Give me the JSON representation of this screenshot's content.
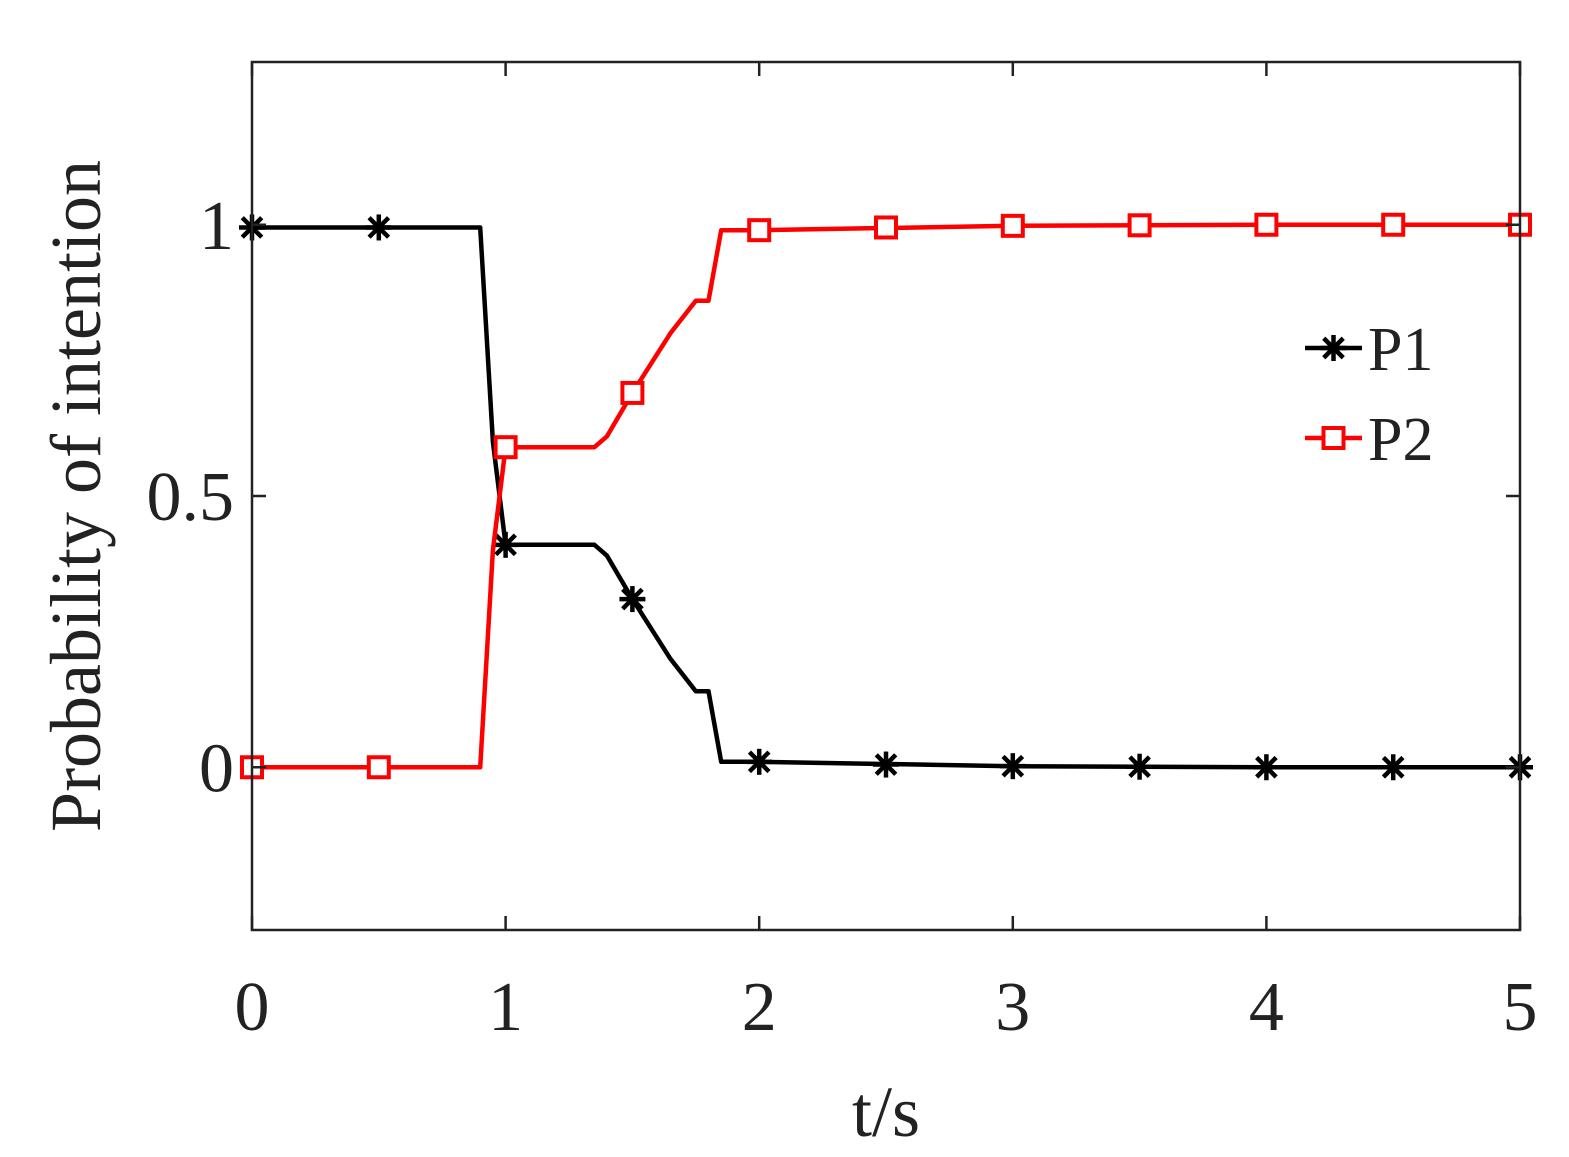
{
  "chart_data": {
    "type": "line",
    "title": "",
    "xlabel": "t/s",
    "ylabel": "Probability of intention",
    "xlim": [
      0,
      5
    ],
    "ylim": [
      -0.3,
      1.3
    ],
    "xticks": [
      0,
      1,
      2,
      3,
      4,
      5
    ],
    "xtick_labels": [
      "0",
      "1",
      "2",
      "3",
      "4",
      "5"
    ],
    "yticks": [
      0,
      0.5,
      1
    ],
    "ytick_labels": [
      "0",
      "0.5",
      "1"
    ],
    "grid": false,
    "legend_position": "right",
    "series": [
      {
        "name": "P1",
        "color": "#000000",
        "marker": "asterisk",
        "line": [
          [
            0,
            0.995
          ],
          [
            0.9,
            0.995
          ],
          [
            0.95,
            0.6
          ],
          [
            1.0,
            0.41
          ],
          [
            1.35,
            0.41
          ],
          [
            1.4,
            0.39
          ],
          [
            1.5,
            0.31
          ],
          [
            1.65,
            0.2
          ],
          [
            1.75,
            0.14
          ],
          [
            1.8,
            0.14
          ],
          [
            1.85,
            0.01
          ],
          [
            2.0,
            0.01
          ],
          [
            3.0,
            0.002
          ],
          [
            4.0,
            0.0
          ],
          [
            5.0,
            0.0
          ]
        ],
        "markers": [
          [
            0,
            0.995
          ],
          [
            0.5,
            0.995
          ],
          [
            1.0,
            0.41
          ],
          [
            1.5,
            0.31
          ],
          [
            2.0,
            0.01
          ],
          [
            2.5,
            0.005
          ],
          [
            3.0,
            0.002
          ],
          [
            3.5,
            0.001
          ],
          [
            4.0,
            0.0
          ],
          [
            4.5,
            0.0
          ],
          [
            5.0,
            0.0
          ]
        ]
      },
      {
        "name": "P2",
        "color": "#ff0000",
        "marker": "square",
        "line": [
          [
            0,
            0.0
          ],
          [
            0.9,
            0.0
          ],
          [
            0.95,
            0.4
          ],
          [
            1.0,
            0.59
          ],
          [
            1.35,
            0.59
          ],
          [
            1.4,
            0.61
          ],
          [
            1.5,
            0.69
          ],
          [
            1.65,
            0.8
          ],
          [
            1.75,
            0.86
          ],
          [
            1.8,
            0.86
          ],
          [
            1.85,
            0.99
          ],
          [
            2.0,
            0.99
          ],
          [
            3.0,
            0.998
          ],
          [
            4.0,
            1.0
          ],
          [
            5.0,
            1.0
          ]
        ],
        "markers": [
          [
            0,
            0.0
          ],
          [
            0.5,
            0.0
          ],
          [
            1.0,
            0.59
          ],
          [
            1.5,
            0.69
          ],
          [
            2.0,
            0.99
          ],
          [
            2.5,
            0.995
          ],
          [
            3.0,
            0.998
          ],
          [
            3.5,
            0.999
          ],
          [
            4.0,
            1.0
          ],
          [
            4.5,
            1.0
          ],
          [
            5.0,
            1.0
          ]
        ]
      }
    ]
  }
}
